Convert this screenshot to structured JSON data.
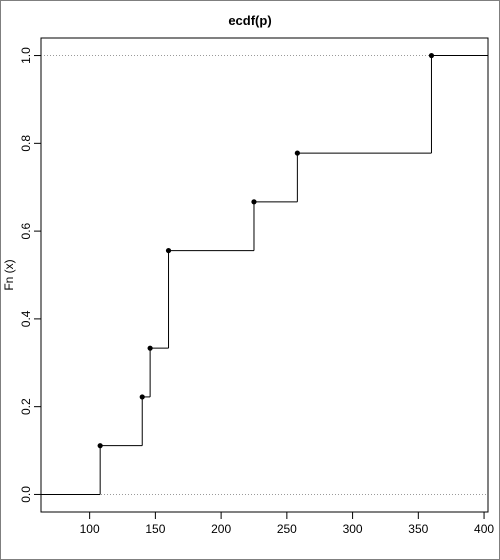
{
  "chart_data": {
    "type": "line",
    "step": "post",
    "title": "ecdf(p)",
    "xlabel": "",
    "ylabel": "Fn (x)",
    "xlim": [
      63,
      403
    ],
    "ylim": [
      -0.04,
      1.04
    ],
    "xticks": [
      100,
      150,
      200,
      250,
      300,
      350,
      400
    ],
    "yticks": [
      0.0,
      0.2,
      0.4,
      0.6,
      0.8,
      1.0
    ],
    "xtick_labels": [
      "100",
      "150",
      "200",
      "250",
      "300",
      "350",
      "400"
    ],
    "ytick_labels": [
      "0.0",
      "0.2",
      "0.4",
      "0.6",
      "0.8",
      "1.0"
    ],
    "reference_lines_y": [
      0.0,
      1.0
    ],
    "grid": false,
    "points": [
      {
        "x": 108,
        "y": 0.1111
      },
      {
        "x": 140,
        "y": 0.2222
      },
      {
        "x": 146,
        "y": 0.3333
      },
      {
        "x": 160,
        "y": 0.5556
      },
      {
        "x": 225,
        "y": 0.6667
      },
      {
        "x": 258,
        "y": 0.7778
      },
      {
        "x": 360,
        "y": 1.0
      }
    ]
  }
}
